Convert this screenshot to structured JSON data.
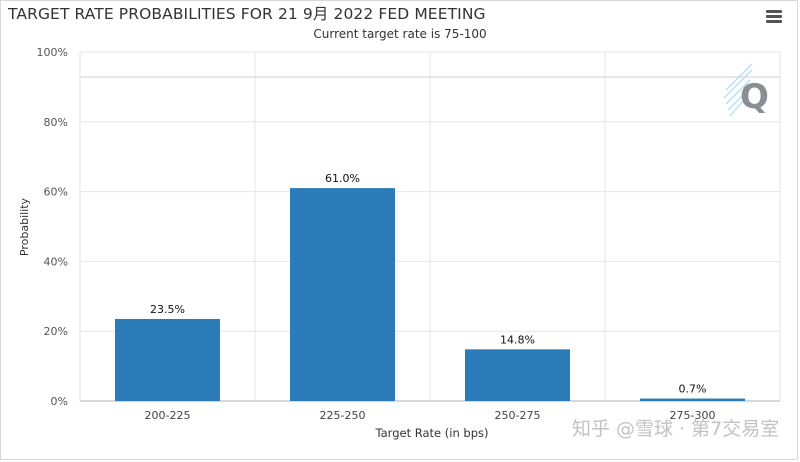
{
  "header": {
    "title": "TARGET RATE PROBABILITIES FOR 21 9月 2022 FED MEETING",
    "subtitle": "Current target rate is 75-100",
    "menu_icon": "hamburger-menu-icon"
  },
  "logo": {
    "icon": "cme-q-logo",
    "letter": "Q"
  },
  "watermark": {
    "text": "知乎 @雪球 · 第7交易室"
  },
  "colors": {
    "bar": "#2b7bb9",
    "grid": "#e6e6e6",
    "axis": "#b0b0b0"
  },
  "chart_data": {
    "type": "bar",
    "categories": [
      "200-225",
      "225-250",
      "250-275",
      "275-300"
    ],
    "values": [
      23.5,
      61.0,
      14.8,
      0.7
    ],
    "data_labels": [
      "23.5%",
      "61.0%",
      "14.8%",
      "0.7%"
    ],
    "xlabel": "Target Rate (in bps)",
    "ylabel": "Probability",
    "ylim": [
      0,
      100
    ],
    "yticks": [
      "0%",
      "20%",
      "40%",
      "60%",
      "80%",
      "100%"
    ],
    "ytick_values": [
      0,
      20,
      40,
      60,
      80,
      100
    ],
    "grid": true,
    "legend": "none"
  }
}
